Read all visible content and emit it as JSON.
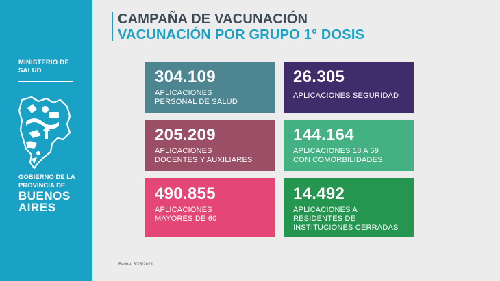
{
  "sidebar": {
    "ministry_line1": "MINISTERIO DE",
    "ministry_line2": "SALUD",
    "gov_line1": "GOBIERNO DE LA",
    "gov_line2": "PROVINCIA DE",
    "ba_line1": "BUENOS",
    "ba_line2": "AIRES",
    "emblem_icon": "province-map-emblem-icon"
  },
  "header": {
    "title": "CAMPAÑA DE VACUNACIÓN",
    "subtitle": "VACUNACIÓN POR GRUPO 1° DOSIS"
  },
  "cards": [
    {
      "value": "304.109",
      "label_line1": "APLICACIONES",
      "label_line2": "PERSONAL DE SALUD",
      "label_line3": "",
      "color": "#4d8591"
    },
    {
      "value": "26.305",
      "label_line1": "APLICACIONES SEGURIDAD",
      "label_line2": "",
      "label_line3": "",
      "color": "#3f2d6b"
    },
    {
      "value": "205.209",
      "label_line1": "APLICACIONES",
      "label_line2": "DOCENTES Y AUXILIARES",
      "label_line3": "",
      "color": "#9b4f67"
    },
    {
      "value": "144.164",
      "label_line1": "APLICACIONES 18 A 59",
      "label_line2": "CON COMORBILIDADES",
      "label_line3": "",
      "color": "#43b181"
    },
    {
      "value": "490.855",
      "label_line1": "APLICACIONES",
      "label_line2": "MAYORES DE 60",
      "label_line3": "",
      "color": "#e44677"
    },
    {
      "value": "14.492",
      "label_line1": "APLICACIONES A",
      "label_line2": "RESIDENTES DE",
      "label_line3": "INSTITUCIONES CERRADAS",
      "color": "#259650"
    }
  ],
  "footer": {
    "date_label": "Fecha:",
    "date_value": "30/3/2021"
  },
  "colors": {
    "sidebar": "#1aa1c6",
    "title": "#3b4a55",
    "accent": "#1aa1c6",
    "background": "#ececec"
  }
}
